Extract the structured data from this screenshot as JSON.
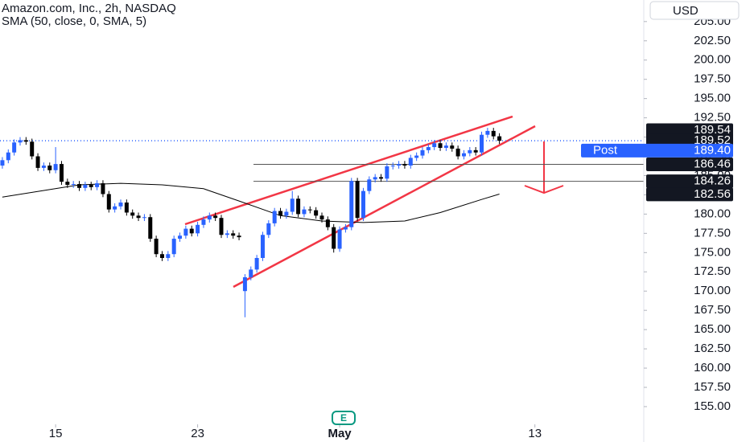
{
  "chart_data": {
    "type": "candlestick",
    "title": "Amazon.com, Inc., 2h, NASDAQ",
    "currency": "USD",
    "earnings": "E",
    "up_color": "#2962ff",
    "down_color": "#000000",
    "x": [
      0,
      1,
      2,
      3,
      4,
      5,
      6,
      7,
      8,
      9,
      10,
      11,
      12,
      13,
      14,
      15,
      16,
      17,
      18,
      19,
      20,
      21,
      22,
      23,
      24,
      25,
      26,
      27,
      28,
      29,
      30,
      31,
      32,
      33,
      34,
      35,
      36,
      37,
      38,
      39,
      40,
      41,
      42,
      43,
      44,
      45,
      46,
      47,
      48,
      49,
      50,
      51,
      52,
      53,
      54,
      55,
      56,
      57,
      58,
      59,
      60,
      61,
      62,
      63,
      64,
      65,
      66,
      67,
      68,
      69,
      70,
      71,
      72,
      73,
      74,
      75,
      76,
      77,
      78,
      79,
      80,
      81,
      82,
      83,
      84
    ],
    "open": [
      186.3,
      187.0,
      188.0,
      189.3,
      189.6,
      189.4,
      187.5,
      186.0,
      186.3,
      185.7,
      186.5,
      184.2,
      183.8,
      183.9,
      183.4,
      183.8,
      183.5,
      184.0,
      182.6,
      180.6,
      181.0,
      181.5,
      180.2,
      179.8,
      179.5,
      179.6,
      176.8,
      174.8,
      174.3,
      174.8,
      176.8,
      177.2,
      178.1,
      177.5,
      178.6,
      179.3,
      179.8,
      179.5,
      177.3,
      177.5,
      177.2,
      170.0,
      171.8,
      172.8,
      174.3,
      177.3,
      178.8,
      180.4,
      179.8,
      180.3,
      182.0,
      180.0,
      180.6,
      180.5,
      179.8,
      179.3,
      178.3,
      175.5,
      178.0,
      178.3,
      184.3,
      179.5,
      183.0,
      184.5,
      184.8,
      184.6,
      186.2,
      186.3,
      186.5,
      186.3,
      187.3,
      187.6,
      188.3,
      188.7,
      189.2,
      188.6,
      188.9,
      188.5,
      187.5,
      187.9,
      188.3,
      188.0,
      190.3,
      190.8,
      190.1
    ],
    "high": [
      187.4,
      188.4,
      189.7,
      190.0,
      190.0,
      189.8,
      187.9,
      186.7,
      186.7,
      188.7,
      186.9,
      184.6,
      184.3,
      184.3,
      184.2,
      184.2,
      184.4,
      184.4,
      183.0,
      181.4,
      181.9,
      181.9,
      180.6,
      180.2,
      180.0,
      180.0,
      177.2,
      175.2,
      175.2,
      177.2,
      177.6,
      178.5,
      178.5,
      179.0,
      179.7,
      180.2,
      180.2,
      179.9,
      177.9,
      177.9,
      177.6,
      172.2,
      173.2,
      174.7,
      177.7,
      179.2,
      180.8,
      180.8,
      180.7,
      183.0,
      182.4,
      181.0,
      181.0,
      180.9,
      180.2,
      179.7,
      178.7,
      178.4,
      178.7,
      184.7,
      184.7,
      183.4,
      184.9,
      185.2,
      185.2,
      186.6,
      186.7,
      186.9,
      186.9,
      187.7,
      188.0,
      188.7,
      189.1,
      189.6,
      189.6,
      189.3,
      189.3,
      188.9,
      188.3,
      188.7,
      188.7,
      190.7,
      191.2,
      191.2,
      190.5
    ],
    "low": [
      185.9,
      186.6,
      187.6,
      188.9,
      189.0,
      187.1,
      185.6,
      185.6,
      185.3,
      185.3,
      183.8,
      183.4,
      183.4,
      183.0,
      183.0,
      183.1,
      183.1,
      182.2,
      180.2,
      180.2,
      180.6,
      179.8,
      179.4,
      179.1,
      179.1,
      176.4,
      174.4,
      173.9,
      173.9,
      174.4,
      176.4,
      176.8,
      177.1,
      177.1,
      178.2,
      178.9,
      179.1,
      176.9,
      176.9,
      176.8,
      176.6,
      166.6,
      171.4,
      172.4,
      173.9,
      176.9,
      178.4,
      179.4,
      179.4,
      179.9,
      179.6,
      179.6,
      180.1,
      179.4,
      178.9,
      177.9,
      175.0,
      175.1,
      177.6,
      177.9,
      179.1,
      179.1,
      182.6,
      184.1,
      184.2,
      184.2,
      185.8,
      185.9,
      185.9,
      185.9,
      186.9,
      187.2,
      187.9,
      188.3,
      188.2,
      188.2,
      188.1,
      187.1,
      187.1,
      187.5,
      187.6,
      187.6,
      189.9,
      189.7,
      189.1
    ],
    "close": [
      187.0,
      188.0,
      189.3,
      189.6,
      189.4,
      187.5,
      186.0,
      186.3,
      185.7,
      186.5,
      184.2,
      183.8,
      183.9,
      183.4,
      183.8,
      183.5,
      184.0,
      182.6,
      180.6,
      181.0,
      181.5,
      180.2,
      179.8,
      179.5,
      179.6,
      176.8,
      174.8,
      174.3,
      174.8,
      176.8,
      177.2,
      178.1,
      177.5,
      178.6,
      179.3,
      179.8,
      179.5,
      177.3,
      177.5,
      177.2,
      177.0,
      171.8,
      172.8,
      174.3,
      177.3,
      178.8,
      180.4,
      179.8,
      180.3,
      182.0,
      180.0,
      180.6,
      180.5,
      179.8,
      179.3,
      178.3,
      175.5,
      178.0,
      178.3,
      184.3,
      179.5,
      183.0,
      184.5,
      184.8,
      184.6,
      186.2,
      186.3,
      186.5,
      186.3,
      187.3,
      187.6,
      188.3,
      188.7,
      189.2,
      188.6,
      188.9,
      188.5,
      187.5,
      187.9,
      188.3,
      188.0,
      190.3,
      190.8,
      190.1,
      189.52
    ],
    "sma": {
      "name": "SMA (50, close, 0, SMA, 5)",
      "color": "#000000",
      "x": [
        0,
        13,
        20,
        27,
        34,
        40,
        47,
        54,
        61,
        68,
        74,
        81,
        84
      ],
      "values": [
        182.2,
        183.8,
        184.0,
        183.8,
        183.3,
        181.7,
        179.8,
        179.1,
        178.9,
        179.1,
        180.2,
        181.9,
        182.6
      ]
    },
    "last_price": 189.52,
    "price_tags": [
      189.54,
      186.46,
      184.26,
      182.56
    ],
    "post": {
      "label": "Post",
      "price": {
        "value": 189.4,
        "label": "189.40"
      }
    },
    "xlim": [
      -0.4,
      108.4
    ],
    "xticks": [
      {
        "value": 9,
        "label": "15"
      },
      {
        "value": 33,
        "label": "23"
      },
      {
        "value": 57,
        "label": "May"
      },
      {
        "value": 90,
        "label": "13"
      }
    ],
    "ylim": [
      152.7,
      207.8
    ],
    "yticks": [
      {
        "value": 155,
        "label": "155.00"
      },
      {
        "value": 157.5,
        "label": "157.50"
      },
      {
        "value": 160,
        "label": "160.00"
      },
      {
        "value": 162.5,
        "label": "162.50"
      },
      {
        "value": 165,
        "label": "165.00"
      },
      {
        "value": 167.5,
        "label": "167.50"
      },
      {
        "value": 170,
        "label": "170.00"
      },
      {
        "value": 172.5,
        "label": "172.50"
      },
      {
        "value": 175,
        "label": "175.00"
      },
      {
        "value": 177.5,
        "label": "177.50"
      },
      {
        "value": 180,
        "label": "180.00"
      },
      {
        "value": 182.5,
        "label": "182.50"
      },
      {
        "value": 185,
        "label": "185.00"
      },
      {
        "value": 187.5,
        "label": "187.50"
      },
      {
        "value": 190,
        "label": "190.00"
      },
      {
        "value": 192.5,
        "label": "192.50"
      },
      {
        "value": 195,
        "label": "195.00"
      },
      {
        "value": 197.5,
        "label": "197.50"
      },
      {
        "value": 200,
        "label": "200.00"
      },
      {
        "value": 202.5,
        "label": "202.50"
      },
      {
        "value": 205,
        "label": "205.00"
      }
    ]
  }
}
